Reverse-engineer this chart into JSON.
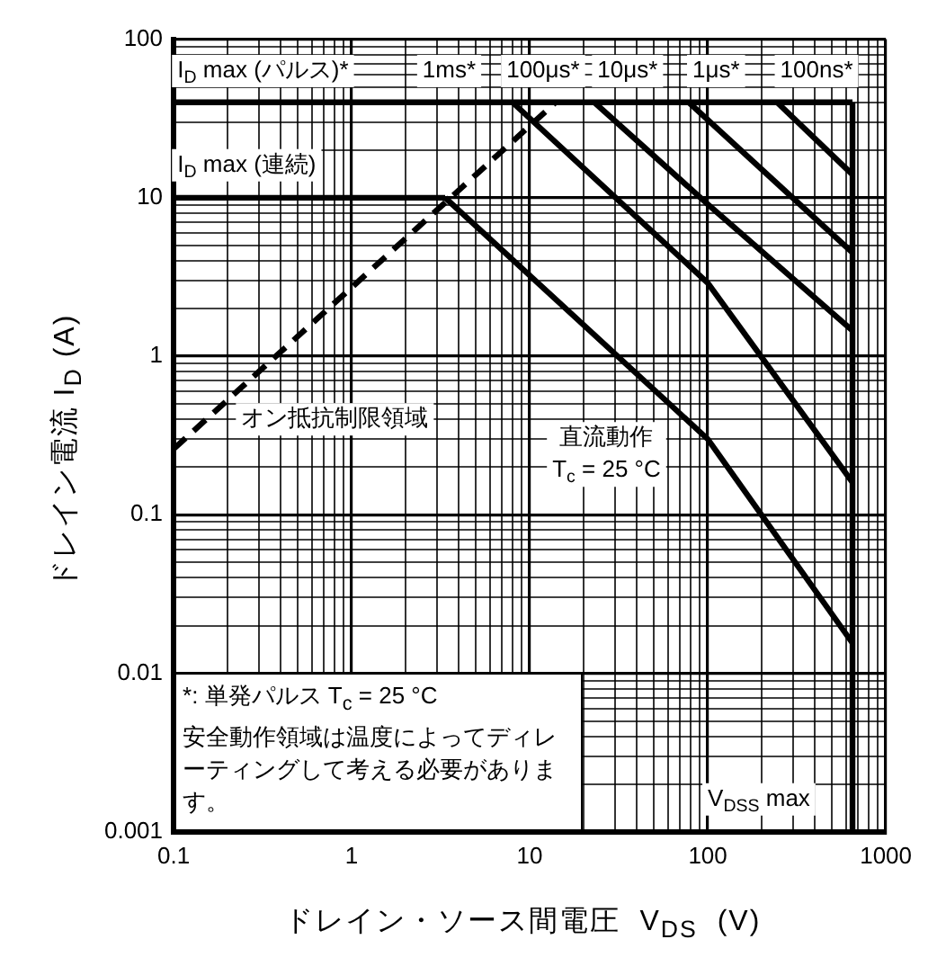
{
  "chart_data": {
    "type": "line",
    "xlabel": "ドレイン・ソース間電圧  V$_{DS}$  (V)",
    "ylabel": "ドレイン電流  I$_{D}$  (A)",
    "log": "xy",
    "grid": true,
    "legend": false,
    "marker": "none",
    "xlim": [
      0.1,
      1000
    ],
    "ylim": [
      0.001,
      100
    ],
    "xticks": [
      0.1,
      {
        "value": 0.2,
        "label": null
      },
      {
        "value": 0.3,
        "label": null
      },
      {
        "value": 0.4,
        "label": null
      },
      {
        "value": 0.5,
        "label": null
      },
      {
        "value": 0.6,
        "label": null
      },
      {
        "value": 0.7,
        "label": null
      },
      {
        "value": 0.8,
        "label": null
      },
      {
        "value": 0.9,
        "label": null
      },
      1,
      {
        "value": 2,
        "label": null
      },
      {
        "value": 3,
        "label": null
      },
      {
        "value": 4,
        "label": null
      },
      {
        "value": 5,
        "label": null
      },
      {
        "value": 6,
        "label": null
      },
      {
        "value": 7,
        "label": null
      },
      {
        "value": 8,
        "label": null
      },
      {
        "value": 9,
        "label": null
      },
      10,
      {
        "value": 20,
        "label": null
      },
      {
        "value": 30,
        "label": null
      },
      {
        "value": 40,
        "label": null
      },
      {
        "value": 50,
        "label": null
      },
      {
        "value": 60,
        "label": null
      },
      {
        "value": 70,
        "label": null
      },
      {
        "value": 80,
        "label": null
      },
      {
        "value": 90,
        "label": null
      },
      100,
      {
        "value": 200,
        "label": null
      },
      {
        "value": 300,
        "label": null
      },
      {
        "value": 400,
        "label": null
      },
      {
        "value": 500,
        "label": null
      },
      {
        "value": 600,
        "label": null
      },
      {
        "value": 700,
        "label": null
      },
      {
        "value": 800,
        "label": null
      },
      {
        "value": 900,
        "label": null
      },
      1000
    ],
    "yticks": [
      0.001,
      {
        "value": 0.002,
        "label": null
      },
      {
        "value": 0.003,
        "label": null
      },
      {
        "value": 0.004,
        "label": null
      },
      {
        "value": 0.005,
        "label": null
      },
      {
        "value": 0.006,
        "label": null
      },
      {
        "value": 0.007,
        "label": null
      },
      {
        "value": 0.008,
        "label": null
      },
      {
        "value": 0.009,
        "label": null
      },
      0.01,
      {
        "value": 0.02,
        "label": null
      },
      {
        "value": 0.03,
        "label": null
      },
      {
        "value": 0.04,
        "label": null
      },
      {
        "value": 0.05,
        "label": null
      },
      {
        "value": 0.06,
        "label": null
      },
      {
        "value": 0.07,
        "label": null
      },
      {
        "value": 0.08,
        "label": null
      },
      {
        "value": 0.09,
        "label": null
      },
      0.1,
      {
        "value": 0.2,
        "label": null
      },
      {
        "value": 0.3,
        "label": null
      },
      {
        "value": 0.4,
        "label": null
      },
      {
        "value": 0.5,
        "label": null
      },
      {
        "value": 0.6,
        "label": null
      },
      {
        "value": 0.7,
        "label": null
      },
      {
        "value": 0.8,
        "label": null
      },
      {
        "value": 0.9,
        "label": null
      },
      1,
      {
        "value": 2,
        "label": null
      },
      {
        "value": 3,
        "label": null
      },
      {
        "value": 4,
        "label": null
      },
      {
        "value": 5,
        "label": null
      },
      {
        "value": 6,
        "label": null
      },
      {
        "value": 7,
        "label": null
      },
      {
        "value": 8,
        "label": null
      },
      {
        "value": 9,
        "label": null
      },
      10,
      {
        "value": 20,
        "label": null
      },
      {
        "value": 30,
        "label": null
      },
      {
        "value": 40,
        "label": null
      },
      {
        "value": 50,
        "label": null
      },
      {
        "value": 60,
        "label": null
      },
      {
        "value": 70,
        "label": null
      },
      {
        "value": 80,
        "label": null
      },
      {
        "value": 90,
        "label": null
      },
      100
    ],
    "series": [
      {
        "color": "#000000",
        "x": [
          0.1,
          650
        ],
        "values": [
          40,
          40
        ]
      },
      {
        "color": "#000000",
        "x": [
          0.1,
          3.35
        ],
        "values": [
          10,
          10
        ]
      },
      {
        "color": "#000000",
        "x": [
          0.1,
          14
        ],
        "values": [
          0.26,
          40
        ],
        "line_style": "dashed"
      },
      {
        "color": "#000000",
        "x": [
          3.35,
          100,
          650
        ],
        "values": [
          10,
          0.3,
          0.0155
        ]
      },
      {
        "color": "#000000",
        "x": [
          8,
          100,
          650
        ],
        "values": [
          40,
          2.9,
          0.16
        ]
      },
      {
        "color": "#000000",
        "x": [
          23,
          100,
          650
        ],
        "values": [
          40,
          9.1,
          1.45
        ]
      },
      {
        "color": "#000000",
        "x": [
          78,
          650
        ],
        "values": [
          40,
          4.5
        ]
      },
      {
        "color": "#000000",
        "x": [
          245,
          650
        ],
        "values": [
          40,
          14
        ]
      },
      {
        "color": "#000000",
        "x": [
          650,
          650
        ],
        "values": [
          0.001,
          40
        ]
      }
    ],
    "annotations": [
      "I$_{D}$ max (パルス)*",
      "1ms*",
      "100μs*",
      "10μs*",
      "1μs*",
      "100ns*",
      "I$_{D}$ max (連続)",
      "オン抵抗制限領域",
      "直流動作\nT$_{c}$ = 25 °C",
      "*: 単発パルス T$_{c}$ = 25 °C",
      "安全動作領域は温度によってディレーティングして考える必要があります。",
      "V$_{DSS}$ max"
    ]
  }
}
